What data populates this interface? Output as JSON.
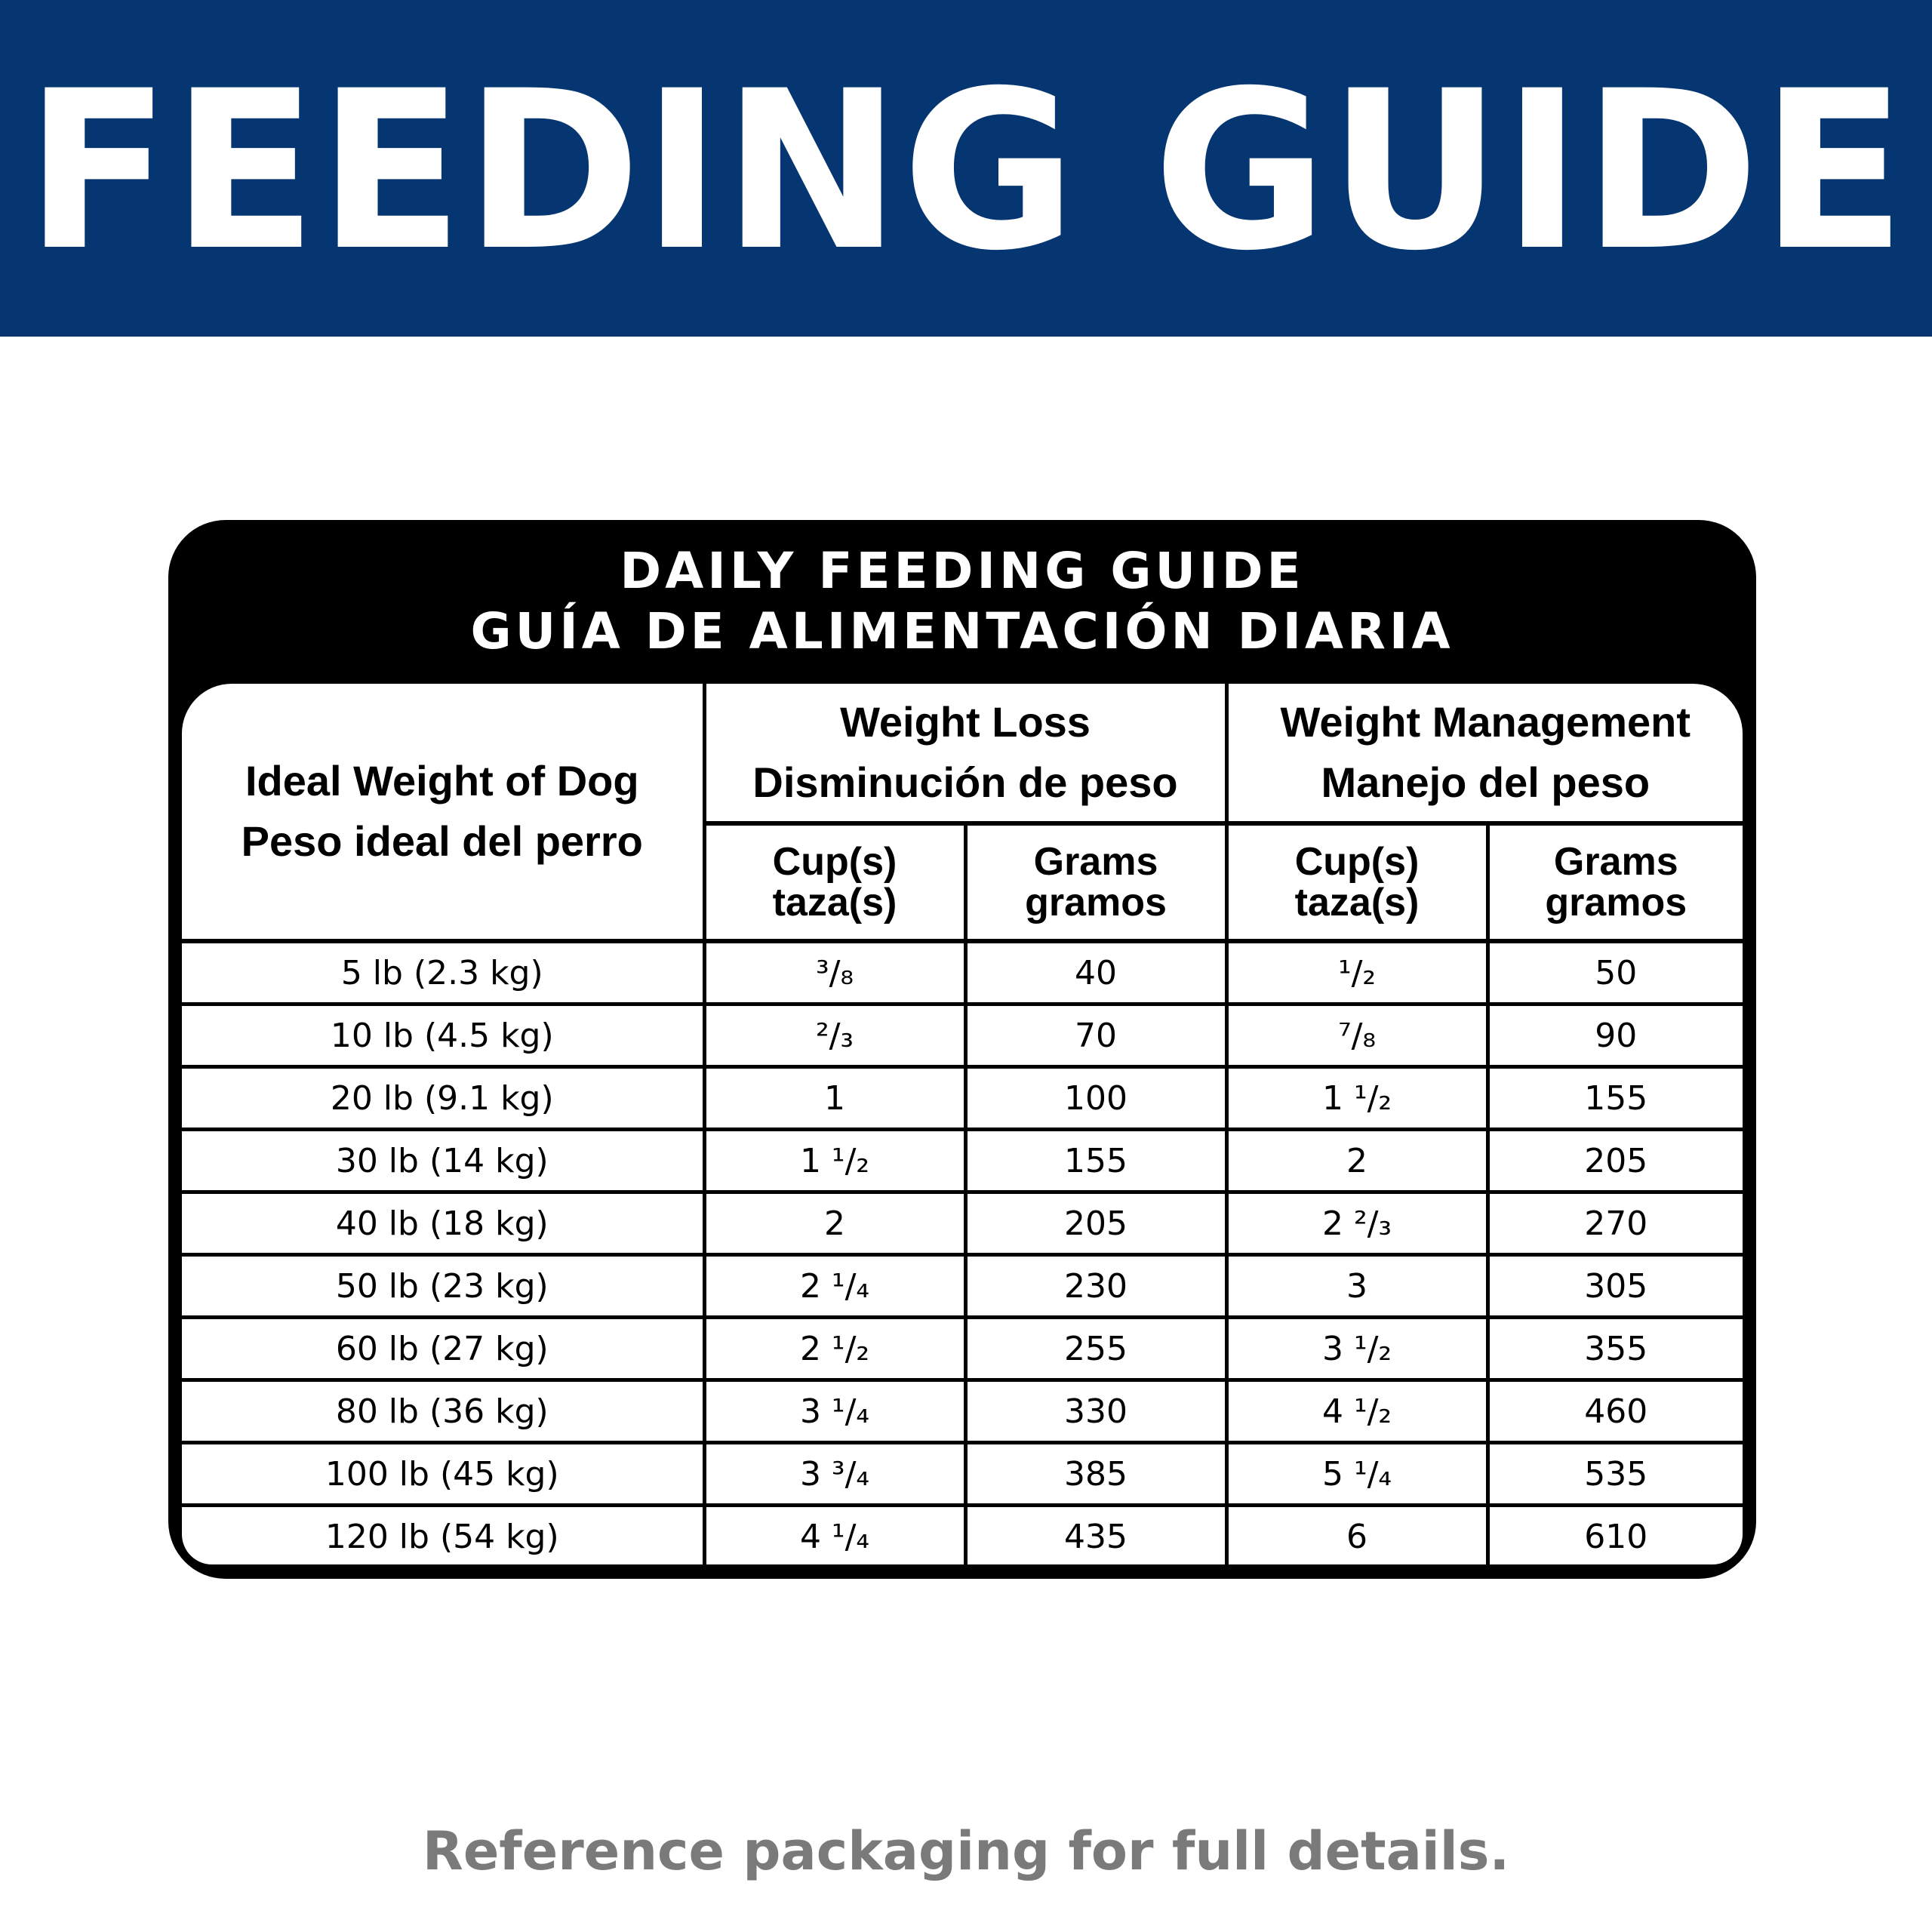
{
  "banner": {
    "title": "FEEDING GUIDE",
    "background": "#063672"
  },
  "card": {
    "title_line1": "DAILY FEEDING GUIDE",
    "title_line2": "GUÍA DE ALIMENTACIÓN DIARIA"
  },
  "table": {
    "col_ideal": {
      "line1": "Ideal Weight of Dog",
      "line2": "Peso ideal del perro"
    },
    "group_loss": {
      "line1": "Weight Loss",
      "line2": "Disminución de peso"
    },
    "group_mgmt": {
      "line1": "Weight Management",
      "line2": "Manejo del peso"
    },
    "sub_cups": {
      "line1": "Cup(s)",
      "line2": "taza(s)"
    },
    "sub_grams": {
      "line1": "Grams",
      "line2": "gramos"
    },
    "rows": [
      [
        "5 lb (2.3 kg)",
        "³/₈",
        "40",
        "¹/₂",
        "50"
      ],
      [
        "10 lb (4.5 kg)",
        "²/₃",
        "70",
        "⁷/₈",
        "90"
      ],
      [
        "20 lb (9.1 kg)",
        "1",
        "100",
        "1 ¹/₂",
        "155"
      ],
      [
        "30 lb (14 kg)",
        "1 ¹/₂",
        "155",
        "2",
        "205"
      ],
      [
        "40 lb (18 kg)",
        "2",
        "205",
        "2 ²/₃",
        "270"
      ],
      [
        "50 lb (23 kg)",
        "2 ¹/₄",
        "230",
        "3",
        "305"
      ],
      [
        "60 lb (27 kg)",
        "2 ¹/₂",
        "255",
        "3 ¹/₂",
        "355"
      ],
      [
        "80 lb (36 kg)",
        "3 ¹/₄",
        "330",
        "4 ¹/₂",
        "460"
      ],
      [
        "100 lb (45 kg)",
        "3 ³/₄",
        "385",
        "5 ¹/₄",
        "535"
      ],
      [
        "120 lb (54 kg)",
        "4 ¹/₄",
        "435",
        "6",
        "610"
      ]
    ]
  },
  "footer": {
    "text": "Reference packaging for full details.",
    "color": "#7a7a7a"
  }
}
